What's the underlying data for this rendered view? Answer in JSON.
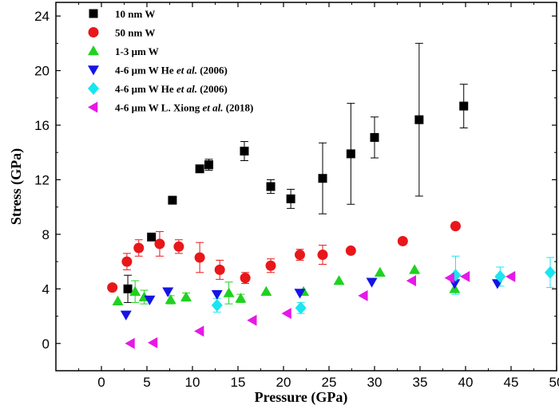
{
  "chart_data": {
    "type": "scatter",
    "title": "",
    "xlabel": "Pressure (GPa)",
    "ylabel": "Stress (GPa)",
    "xlim": [
      -5,
      50
    ],
    "ylim": [
      -2,
      25
    ],
    "xticks": [
      0,
      5,
      10,
      15,
      20,
      25,
      30,
      35,
      40,
      45,
      50
    ],
    "yticks": [
      0,
      4,
      8,
      12,
      16,
      20,
      24
    ],
    "grid": false,
    "legend_position": "top-left",
    "series": [
      {
        "name": "10 nm W",
        "label_parts": [
          "10 nm W"
        ],
        "marker": "square",
        "color": "#000000",
        "points": [
          {
            "x": 2.9,
            "y": 4.0,
            "err": 1.0
          },
          {
            "x": 5.5,
            "y": 7.8,
            "err": 0
          },
          {
            "x": 7.8,
            "y": 10.5,
            "err": 0
          },
          {
            "x": 10.8,
            "y": 12.8,
            "err": 0.2
          },
          {
            "x": 11.8,
            "y": 13.1,
            "err": 0.4
          },
          {
            "x": 15.7,
            "y": 14.1,
            "err": 0.7
          },
          {
            "x": 18.6,
            "y": 11.5,
            "err": 0.5
          },
          {
            "x": 20.8,
            "y": 10.6,
            "err": 0.7
          },
          {
            "x": 24.3,
            "y": 12.1,
            "err": 2.6
          },
          {
            "x": 27.4,
            "y": 13.9,
            "err": 3.7
          },
          {
            "x": 30.0,
            "y": 15.1,
            "err": 1.5
          },
          {
            "x": 34.9,
            "y": 16.4,
            "err": 5.6
          },
          {
            "x": 39.8,
            "y": 17.4,
            "err": 1.6
          }
        ]
      },
      {
        "name": "50 nm W",
        "label_parts": [
          "50 nm W"
        ],
        "marker": "circle",
        "color": "#e8171a",
        "points": [
          {
            "x": 1.2,
            "y": 4.1,
            "err": 0
          },
          {
            "x": 2.8,
            "y": 6.0,
            "err": 0.6
          },
          {
            "x": 4.1,
            "y": 7.0,
            "err": 0.6
          },
          {
            "x": 6.4,
            "y": 7.3,
            "err": 0.9
          },
          {
            "x": 8.5,
            "y": 7.1,
            "err": 0.5
          },
          {
            "x": 10.8,
            "y": 6.3,
            "err": 1.1
          },
          {
            "x": 13.0,
            "y": 5.4,
            "err": 0.7
          },
          {
            "x": 15.8,
            "y": 4.8,
            "err": 0.4
          },
          {
            "x": 18.6,
            "y": 5.7,
            "err": 0.5
          },
          {
            "x": 21.8,
            "y": 6.5,
            "err": 0.4
          },
          {
            "x": 24.3,
            "y": 6.5,
            "err": 0.7
          },
          {
            "x": 27.4,
            "y": 6.8,
            "err": 0
          },
          {
            "x": 33.1,
            "y": 7.5,
            "err": 0
          },
          {
            "x": 38.9,
            "y": 8.6,
            "err": 0
          }
        ]
      },
      {
        "name": "1-3 μm W",
        "label_parts": [
          "1-3 μm W"
        ],
        "marker": "triangle-up",
        "color": "#1fd21f",
        "points": [
          {
            "x": 1.8,
            "y": 3.1,
            "err": 0
          },
          {
            "x": 3.7,
            "y": 3.8,
            "err": 0.8
          },
          {
            "x": 4.7,
            "y": 3.4,
            "err": 0.5
          },
          {
            "x": 7.6,
            "y": 3.2,
            "err": 0.3
          },
          {
            "x": 9.3,
            "y": 3.4,
            "err": 0.3
          },
          {
            "x": 14.0,
            "y": 3.7,
            "err": 0.8
          },
          {
            "x": 15.3,
            "y": 3.3,
            "err": 0.3
          },
          {
            "x": 18.1,
            "y": 3.8,
            "err": 0
          },
          {
            "x": 22.2,
            "y": 3.8,
            "err": 0
          },
          {
            "x": 26.1,
            "y": 4.6,
            "err": 0
          },
          {
            "x": 30.6,
            "y": 5.2,
            "err": 0
          },
          {
            "x": 34.4,
            "y": 5.4,
            "err": 0
          },
          {
            "x": 38.8,
            "y": 4.0,
            "err": 0
          }
        ]
      },
      {
        "name": "4-6 μm W He et al. (2006)",
        "label_parts": [
          "4-6 μm W He ",
          "et al.",
          " (2006)"
        ],
        "marker": "triangle-down",
        "color": "#1414e6",
        "points": [
          {
            "x": 2.7,
            "y": 2.1,
            "err": 0
          },
          {
            "x": 5.3,
            "y": 3.2,
            "err": 0
          },
          {
            "x": 7.3,
            "y": 3.8,
            "err": 0
          },
          {
            "x": 12.7,
            "y": 3.6,
            "err": 0
          },
          {
            "x": 21.8,
            "y": 3.7,
            "err": 0
          },
          {
            "x": 29.7,
            "y": 4.5,
            "err": 0
          },
          {
            "x": 38.8,
            "y": 4.4,
            "err": 0
          },
          {
            "x": 43.5,
            "y": 4.4,
            "err": 0
          }
        ]
      },
      {
        "name": "4-6 μm W He et al. (2006)",
        "label_parts": [
          "4-6 μm W He ",
          "et al.",
          " (2006)"
        ],
        "marker": "diamond",
        "color": "#19e6f0",
        "points": [
          {
            "x": 12.7,
            "y": 2.8,
            "err": 0.5
          },
          {
            "x": 21.9,
            "y": 2.6,
            "err": 0.4
          },
          {
            "x": 38.9,
            "y": 5.0,
            "err": 1.4
          },
          {
            "x": 43.8,
            "y": 4.9,
            "err": 0.7
          },
          {
            "x": 49.3,
            "y": 5.2,
            "err": 1.1
          }
        ]
      },
      {
        "name": "4-6 μm W L. Xiong et al. (2018)",
        "label_parts": [
          "4-6 μm W L. Xiong ",
          "et al.",
          " (2018)"
        ],
        "marker": "triangle-left",
        "color": "#e619e6",
        "points": [
          {
            "x": 3.2,
            "y": 0.0,
            "err": 0
          },
          {
            "x": 5.7,
            "y": 0.05,
            "err": 0
          },
          {
            "x": 10.8,
            "y": 0.9,
            "err": 0
          },
          {
            "x": 16.6,
            "y": 1.7,
            "err": 0
          },
          {
            "x": 20.4,
            "y": 2.2,
            "err": 0
          },
          {
            "x": 28.8,
            "y": 3.5,
            "err": 0
          },
          {
            "x": 34.1,
            "y": 4.6,
            "err": 0
          },
          {
            "x": 38.3,
            "y": 4.8,
            "err": 0
          },
          {
            "x": 40.0,
            "y": 4.9,
            "err": 0
          },
          {
            "x": 45.0,
            "y": 4.9,
            "err": 0
          }
        ]
      }
    ]
  }
}
